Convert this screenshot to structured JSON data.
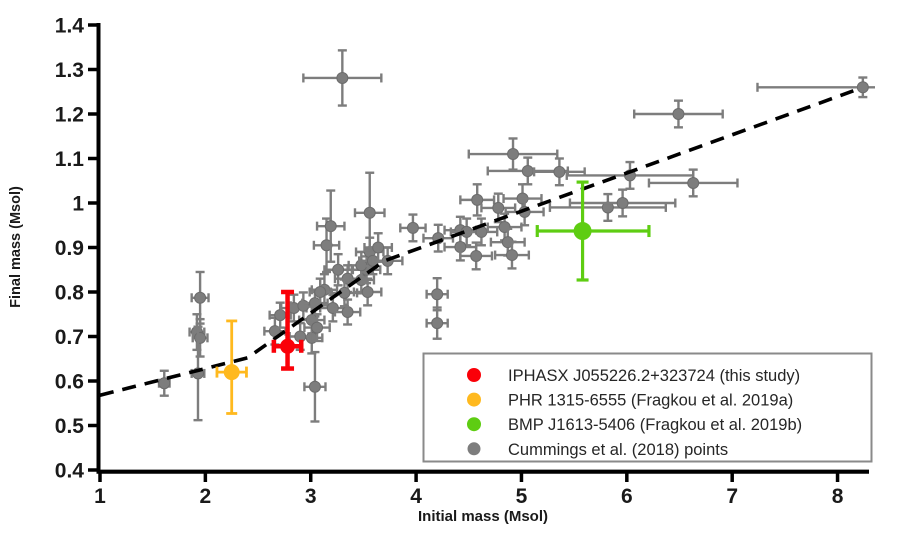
{
  "page": {
    "background": "#ffffff",
    "top_border_color": "#cccccc",
    "bottom_border_color": "#9e9e9e",
    "text_color": "#1a1a1a",
    "axis_color": "#000000"
  },
  "chart_data": {
    "type": "scatter",
    "title": "",
    "xlabel": "Initial mass (Msol)",
    "ylabel": "Final mass  (Msol)",
    "xlim": [
      1,
      8.27
    ],
    "ylim": [
      0.4,
      1.4
    ],
    "x_ticks": [
      1,
      2,
      3,
      4,
      5,
      6,
      7,
      8
    ],
    "x_tick_labels": [
      "1",
      "2",
      "3",
      "4",
      "5",
      "6",
      "7",
      "8"
    ],
    "y_ticks": [
      0.4,
      0.5,
      0.6,
      0.7,
      0.8,
      0.9,
      1.0,
      1.1,
      1.2,
      1.3,
      1.4
    ],
    "y_tick_labels": [
      "0.4",
      "0.5",
      "0.6",
      "0.7",
      "0.8",
      "0.9",
      "1",
      "1.1",
      "1.2",
      "1.3",
      "1.4"
    ],
    "grid": false,
    "legend_position": "lower-right",
    "fit_line": {
      "style": "dashed",
      "color": "#000000",
      "points": [
        [
          1.0,
          0.568
        ],
        [
          2.4,
          0.652
        ],
        [
          3.7,
          0.87
        ],
        [
          8.15,
          1.252
        ]
      ]
    },
    "series": [
      {
        "key": "iphasx",
        "name": "IPHASX J055226.2+323724 (this study)",
        "color": "#fa0008",
        "points": [
          {
            "x": 2.78,
            "y": 0.678,
            "xl": 0.13,
            "xr": 0.13,
            "yu": 0.122,
            "yd": 0.05
          }
        ]
      },
      {
        "key": "phr",
        "name": "PHR 1315-6555 (Fragkou et al. 2019a)",
        "color": "#ffb91e",
        "points": [
          {
            "x": 2.25,
            "y": 0.62,
            "xl": 0.14,
            "xr": 0.14,
            "yu": 0.115,
            "yd": 0.093
          }
        ]
      },
      {
        "key": "bmp",
        "name": "BMP J1613-5406 (Fragkou et al. 2019b)",
        "color": "#5ecd12",
        "points": [
          {
            "x": 5.58,
            "y": 0.937,
            "xl": 0.43,
            "xr": 0.63,
            "yu": 0.11,
            "yd": 0.11
          }
        ]
      },
      {
        "key": "cummings",
        "name": "Cummings et al. (2018) points",
        "color": "#7d7d7d",
        "points": [
          [
            1.61,
            0.595,
            0.05,
            0.028
          ],
          [
            1.95,
            0.787,
            0.08,
            0.058
          ],
          [
            1.92,
            0.71,
            0.07,
            0.04
          ],
          [
            1.95,
            0.697,
            0.07,
            0.042
          ],
          [
            1.93,
            0.617,
            0.06,
            0.105
          ],
          [
            2.66,
            0.712,
            0.1,
            0.03
          ],
          [
            2.71,
            0.748,
            0.1,
            0.028
          ],
          [
            2.84,
            0.764,
            0.12,
            0.03
          ],
          [
            2.93,
            0.769,
            0.12,
            0.03
          ],
          [
            3.04,
            0.775,
            0.12,
            0.03
          ],
          [
            3.01,
            0.737,
            0.12,
            0.03
          ],
          [
            3.01,
            0.697,
            0.1,
            0.035
          ],
          [
            2.9,
            0.7,
            0.1,
            0.03
          ],
          [
            3.06,
            0.72,
            0.12,
            0.03
          ],
          [
            3.13,
            0.805,
            0.12,
            0.035
          ],
          [
            3.09,
            0.8,
            0.1,
            0.03
          ],
          [
            3.04,
            0.587,
            0.1,
            0.078
          ],
          [
            3.21,
            0.764,
            0.12,
            0.03
          ],
          [
            3.35,
            0.755,
            0.12,
            0.028
          ],
          [
            3.26,
            0.85,
            0.13,
            0.035
          ],
          [
            3.35,
            0.83,
            0.12,
            0.03
          ],
          [
            3.48,
            0.827,
            0.12,
            0.03
          ],
          [
            3.32,
            0.798,
            0.12,
            0.03
          ],
          [
            3.54,
            0.8,
            0.13,
            0.03
          ],
          [
            3.53,
            0.85,
            0.13,
            0.03
          ],
          [
            3.48,
            0.86,
            0.12,
            0.03
          ],
          [
            3.56,
            0.89,
            0.13,
            0.032
          ],
          [
            3.59,
            0.87,
            0.13,
            0.03
          ],
          [
            3.73,
            0.87,
            0.14,
            0.03
          ],
          [
            3.64,
            0.9,
            0.13,
            0.032
          ],
          [
            3.15,
            0.905,
            0.12,
            0.06
          ],
          [
            3.19,
            0.948,
            0.13,
            0.08
          ],
          [
            3.56,
            0.978,
            0.14,
            0.09
          ],
          [
            3.3,
            1.281,
            0.37,
            0.062
          ],
          [
            3.97,
            0.944,
            0.12,
            0.03
          ],
          [
            4.21,
            0.921,
            0.14,
            0.03
          ],
          [
            4.2,
            0.795,
            0.1,
            0.036
          ],
          [
            4.2,
            0.73,
            0.1,
            0.035
          ],
          [
            4.42,
            0.939,
            0.15,
            0.03
          ],
          [
            4.48,
            0.935,
            0.15,
            0.03
          ],
          [
            4.58,
            1.007,
            0.16,
            0.035
          ],
          [
            4.62,
            0.935,
            0.15,
            0.03
          ],
          [
            4.42,
            0.901,
            0.15,
            0.03
          ],
          [
            4.57,
            0.881,
            0.15,
            0.03
          ],
          [
            4.78,
            0.989,
            0.16,
            0.032
          ],
          [
            4.84,
            0.946,
            0.16,
            0.03
          ],
          [
            4.87,
            0.912,
            0.16,
            0.03
          ],
          [
            4.91,
            0.883,
            0.16,
            0.03
          ],
          [
            4.92,
            1.11,
            0.42,
            0.035
          ],
          [
            5.06,
            1.072,
            0.38,
            0.03
          ],
          [
            5.36,
            1.07,
            0.24,
            0.03
          ],
          [
            5.01,
            1.01,
            0.18,
            0.032
          ],
          [
            5.03,
            0.98,
            0.18,
            0.03
          ],
          [
            5.82,
            0.99,
            0.55,
            0.03
          ],
          [
            5.96,
            1.0,
            0.5,
            0.03
          ],
          [
            6.03,
            1.062,
            0.6,
            0.03
          ],
          [
            6.49,
            1.2,
            0.42,
            0.03
          ],
          [
            6.63,
            1.045,
            0.42,
            0.03
          ],
          [
            8.24,
            1.26,
            1.0,
            0.022
          ]
        ]
      }
    ]
  }
}
